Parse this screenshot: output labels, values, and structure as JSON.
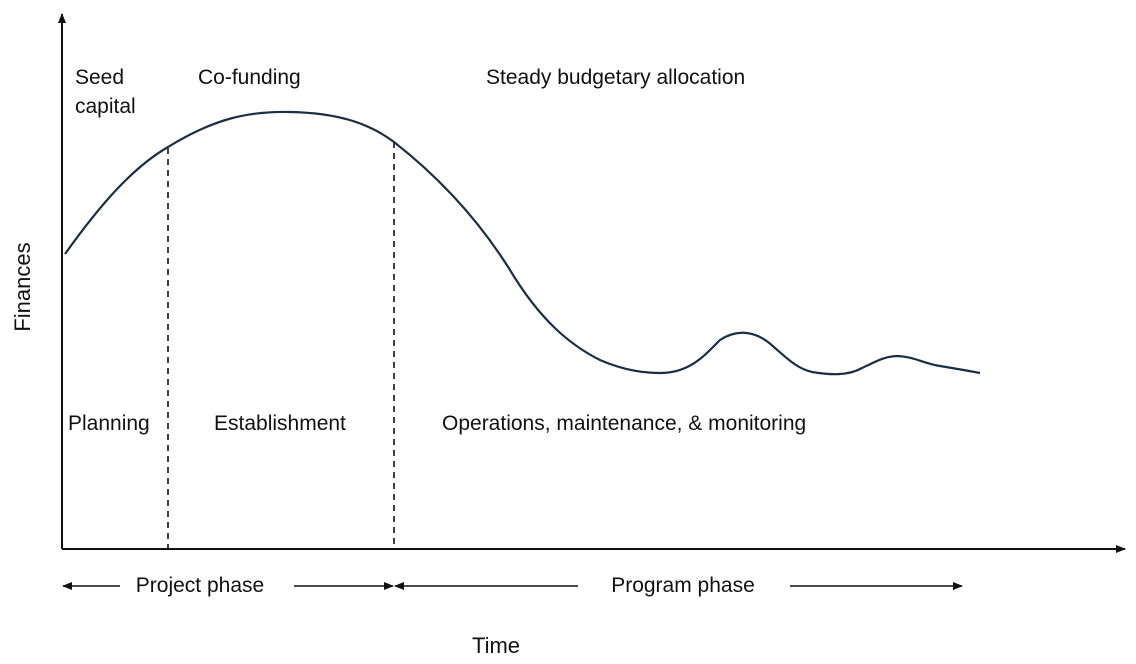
{
  "diagram": {
    "y_axis_label": "Finances",
    "x_axis_label": "Time",
    "funding_labels": {
      "seed_line1": "Seed",
      "seed_line2": "capital",
      "cofunding": "Co-funding",
      "steady": "Steady budgetary allocation"
    },
    "stage_labels": {
      "planning": "Planning",
      "establishment": "Establishment",
      "operations": "Operations, maintenance, & monitoring"
    },
    "phases": {
      "project": "Project phase",
      "program": "Program phase"
    },
    "colors": {
      "curve": "#1c2e44",
      "axis": "#111111"
    }
  }
}
